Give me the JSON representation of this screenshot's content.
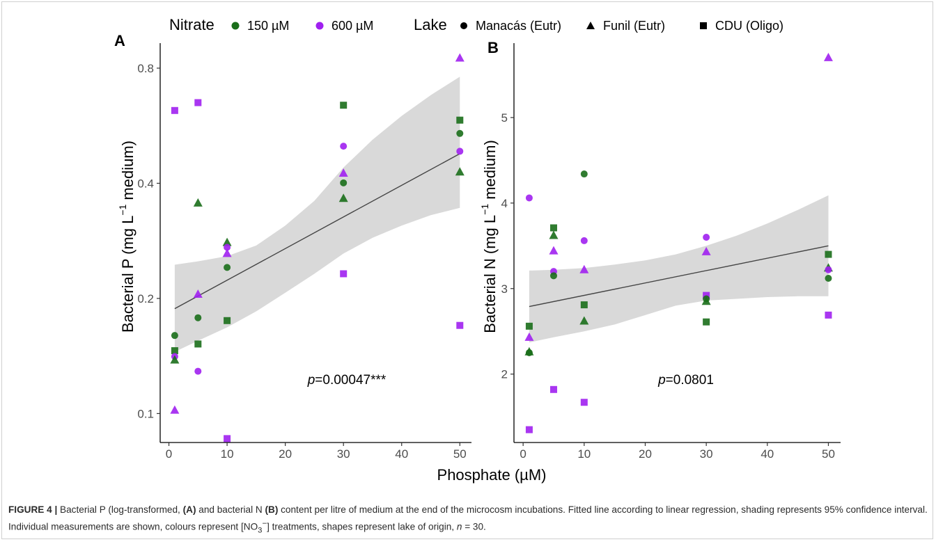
{
  "figure": {
    "legend": {
      "nitrate_title": "Nitrate",
      "nitrate_levels": [
        {
          "label": "150 µM",
          "color": "#1a6e1a"
        },
        {
          "label": "600 µM",
          "color": "#a020f0"
        }
      ],
      "lake_title": "Lake",
      "lakes": [
        {
          "label": "Manacás (Eutr)",
          "shape": "circle"
        },
        {
          "label": "Funil (Eutr)",
          "shape": "triangle"
        },
        {
          "label": "CDU (Oligo)",
          "shape": "square"
        }
      ]
    },
    "x_axis_title": "Phosphate (µM)",
    "caption": {
      "label": "FIGURE 4 |",
      "t1": " Bacterial P (log-transformed, ",
      "a": "(A)",
      "t2": " and bacterial N ",
      "b": "(B)",
      "t3": " content per litre of medium at the end of the microcosm incubations. Fitted line according to linear regression, shading represents 95% confidence interval. Individual measurements are shown, colours represent [NO",
      "sub": "3",
      "sup": "−",
      "t4": "] treatments, shapes represent lake of origin, ",
      "n": "n",
      "t5": " = 30."
    }
  },
  "chart_data": [
    {
      "type": "scatter",
      "panel": "A",
      "ylabel_pre": "Bacterial P (mg L",
      "ylabel_sup": "−1",
      "ylabel_post": " medium)",
      "y_scale": "log",
      "xlim": [
        -1.5,
        52
      ],
      "ylim": [
        0.084,
        0.93
      ],
      "x_ticks": [
        0,
        10,
        20,
        30,
        40,
        50
      ],
      "y_ticks": [
        0.1,
        0.2,
        0.4,
        0.8
      ],
      "y_tick_labels": [
        "0.1",
        "0.2",
        "0.4",
        "0.8"
      ],
      "fit": {
        "x": [
          1,
          50
        ],
        "y": [
          0.188,
          0.478
        ]
      },
      "ci_band": {
        "x": [
          1,
          5,
          10,
          15,
          20,
          25,
          30,
          35,
          40,
          45,
          50
        ],
        "upper": [
          0.245,
          0.25,
          0.258,
          0.275,
          0.31,
          0.36,
          0.44,
          0.52,
          0.6,
          0.68,
          0.76
        ],
        "lower": [
          0.145,
          0.155,
          0.168,
          0.185,
          0.207,
          0.232,
          0.262,
          0.288,
          0.31,
          0.33,
          0.345
        ]
      },
      "annotation": {
        "italic": "p",
        "text": "=0.00047***",
        "x": 30,
        "y": 0.125
      },
      "points": [
        {
          "x": 1,
          "y": 0.62,
          "nitrate": "600 µM",
          "lake": "CDU (Oligo)"
        },
        {
          "x": 1,
          "y": 0.16,
          "nitrate": "150 µM",
          "lake": "Manacás (Eutr)"
        },
        {
          "x": 1,
          "y": 0.146,
          "nitrate": "150 µM",
          "lake": "CDU (Oligo)"
        },
        {
          "x": 1,
          "y": 0.141,
          "nitrate": "600 µM",
          "lake": "Manacás (Eutr)"
        },
        {
          "x": 1,
          "y": 0.138,
          "nitrate": "150 µM",
          "lake": "Funil (Eutr)"
        },
        {
          "x": 1,
          "y": 0.102,
          "nitrate": "600 µM",
          "lake": "Funil (Eutr)"
        },
        {
          "x": 5,
          "y": 0.65,
          "nitrate": "600 µM",
          "lake": "CDU (Oligo)"
        },
        {
          "x": 5,
          "y": 0.355,
          "nitrate": "150 µM",
          "lake": "Funil (Eutr)"
        },
        {
          "x": 5,
          "y": 0.205,
          "nitrate": "600 µM",
          "lake": "Funil (Eutr)"
        },
        {
          "x": 5,
          "y": 0.178,
          "nitrate": "150 µM",
          "lake": "Manacás (Eutr)"
        },
        {
          "x": 5,
          "y": 0.152,
          "nitrate": "150 µM",
          "lake": "CDU (Oligo)"
        },
        {
          "x": 5,
          "y": 0.129,
          "nitrate": "600 µM",
          "lake": "Manacás (Eutr)"
        },
        {
          "x": 10,
          "y": 0.28,
          "nitrate": "150 µM",
          "lake": "Funil (Eutr)"
        },
        {
          "x": 10,
          "y": 0.272,
          "nitrate": "600 µM",
          "lake": "Manacás (Eutr)"
        },
        {
          "x": 10,
          "y": 0.262,
          "nitrate": "600 µM",
          "lake": "Funil (Eutr)"
        },
        {
          "x": 10,
          "y": 0.241,
          "nitrate": "150 µM",
          "lake": "Manacás (Eutr)"
        },
        {
          "x": 10,
          "y": 0.175,
          "nitrate": "150 µM",
          "lake": "CDU (Oligo)"
        },
        {
          "x": 10,
          "y": 0.086,
          "nitrate": "600 µM",
          "lake": "CDU (Oligo)"
        },
        {
          "x": 30,
          "y": 0.64,
          "nitrate": "150 µM",
          "lake": "CDU (Oligo)"
        },
        {
          "x": 30,
          "y": 0.5,
          "nitrate": "600 µM",
          "lake": "Manacás (Eutr)"
        },
        {
          "x": 30,
          "y": 0.425,
          "nitrate": "600 µM",
          "lake": "Funil (Eutr)"
        },
        {
          "x": 30,
          "y": 0.401,
          "nitrate": "150 µM",
          "lake": "Manacás (Eutr)"
        },
        {
          "x": 30,
          "y": 0.365,
          "nitrate": "150 µM",
          "lake": "Funil (Eutr)"
        },
        {
          "x": 30,
          "y": 0.232,
          "nitrate": "600 µM",
          "lake": "CDU (Oligo)"
        },
        {
          "x": 50,
          "y": 0.85,
          "nitrate": "600 µM",
          "lake": "Funil (Eutr)"
        },
        {
          "x": 50,
          "y": 0.585,
          "nitrate": "150 µM",
          "lake": "CDU (Oligo)"
        },
        {
          "x": 50,
          "y": 0.54,
          "nitrate": "150 µM",
          "lake": "Manacás (Eutr)"
        },
        {
          "x": 50,
          "y": 0.485,
          "nitrate": "600 µM",
          "lake": "Manacás (Eutr)"
        },
        {
          "x": 50,
          "y": 0.428,
          "nitrate": "150 µM",
          "lake": "Funil (Eutr)"
        },
        {
          "x": 50,
          "y": 0.17,
          "nitrate": "600 µM",
          "lake": "CDU (Oligo)"
        }
      ]
    },
    {
      "type": "scatter",
      "panel": "B",
      "ylabel_pre": "Bacterial N (mg L",
      "ylabel_sup": "−1",
      "ylabel_post": " medium)",
      "y_scale": "linear",
      "xlim": [
        -1.5,
        52
      ],
      "ylim": [
        1.2,
        5.87
      ],
      "x_ticks": [
        0,
        10,
        20,
        30,
        40,
        50
      ],
      "y_ticks": [
        2,
        3,
        4,
        5
      ],
      "y_tick_labels": [
        "2",
        "3",
        "4",
        "5"
      ],
      "fit": {
        "x": [
          1,
          50
        ],
        "y": [
          2.79,
          3.5
        ]
      },
      "ci_band": {
        "x": [
          1,
          5,
          10,
          15,
          20,
          25,
          30,
          35,
          40,
          45,
          50
        ],
        "upper": [
          3.21,
          3.22,
          3.24,
          3.28,
          3.33,
          3.4,
          3.5,
          3.62,
          3.76,
          3.92,
          4.09
        ],
        "lower": [
          2.37,
          2.43,
          2.5,
          2.58,
          2.69,
          2.8,
          2.86,
          2.88,
          2.9,
          2.91,
          2.91
        ]
      },
      "annotation": {
        "italic": "p",
        "text": "=0.0801",
        "x": 30,
        "y": 1.95
      },
      "points": [
        {
          "x": 1,
          "y": 4.06,
          "nitrate": "600 µM",
          "lake": "Manacás (Eutr)"
        },
        {
          "x": 1,
          "y": 2.56,
          "nitrate": "150 µM",
          "lake": "CDU (Oligo)"
        },
        {
          "x": 1,
          "y": 2.43,
          "nitrate": "600 µM",
          "lake": "Funil (Eutr)"
        },
        {
          "x": 1,
          "y": 2.26,
          "nitrate": "150 µM",
          "lake": "Funil (Eutr)"
        },
        {
          "x": 1,
          "y": 2.25,
          "nitrate": "150 µM",
          "lake": "Manacás (Eutr)"
        },
        {
          "x": 1,
          "y": 1.35,
          "nitrate": "600 µM",
          "lake": "CDU (Oligo)"
        },
        {
          "x": 5,
          "y": 3.71,
          "nitrate": "150 µM",
          "lake": "CDU (Oligo)"
        },
        {
          "x": 5,
          "y": 3.62,
          "nitrate": "150 µM",
          "lake": "Funil (Eutr)"
        },
        {
          "x": 5,
          "y": 3.44,
          "nitrate": "600 µM",
          "lake": "Funil (Eutr)"
        },
        {
          "x": 5,
          "y": 3.2,
          "nitrate": "600 µM",
          "lake": "Manacás (Eutr)"
        },
        {
          "x": 5,
          "y": 3.15,
          "nitrate": "150 µM",
          "lake": "Manacás (Eutr)"
        },
        {
          "x": 5,
          "y": 1.82,
          "nitrate": "600 µM",
          "lake": "CDU (Oligo)"
        },
        {
          "x": 10,
          "y": 4.34,
          "nitrate": "150 µM",
          "lake": "Manacás (Eutr)"
        },
        {
          "x": 10,
          "y": 3.56,
          "nitrate": "600 µM",
          "lake": "Manacás (Eutr)"
        },
        {
          "x": 10,
          "y": 3.22,
          "nitrate": "600 µM",
          "lake": "Funil (Eutr)"
        },
        {
          "x": 10,
          "y": 2.81,
          "nitrate": "150 µM",
          "lake": "CDU (Oligo)"
        },
        {
          "x": 10,
          "y": 2.62,
          "nitrate": "150 µM",
          "lake": "Funil (Eutr)"
        },
        {
          "x": 10,
          "y": 1.67,
          "nitrate": "600 µM",
          "lake": "CDU (Oligo)"
        },
        {
          "x": 30,
          "y": 3.6,
          "nitrate": "600 µM",
          "lake": "Manacás (Eutr)"
        },
        {
          "x": 30,
          "y": 3.43,
          "nitrate": "600 µM",
          "lake": "Funil (Eutr)"
        },
        {
          "x": 30,
          "y": 2.92,
          "nitrate": "600 µM",
          "lake": "CDU (Oligo)"
        },
        {
          "x": 30,
          "y": 2.85,
          "nitrate": "150 µM",
          "lake": "Funil (Eutr)"
        },
        {
          "x": 30,
          "y": 2.88,
          "nitrate": "150 µM",
          "lake": "Manacás (Eutr)"
        },
        {
          "x": 30,
          "y": 2.61,
          "nitrate": "150 µM",
          "lake": "CDU (Oligo)"
        },
        {
          "x": 50,
          "y": 5.7,
          "nitrate": "600 µM",
          "lake": "Funil (Eutr)"
        },
        {
          "x": 50,
          "y": 3.4,
          "nitrate": "150 µM",
          "lake": "CDU (Oligo)"
        },
        {
          "x": 50,
          "y": 3.24,
          "nitrate": "150 µM",
          "lake": "Funil (Eutr)"
        },
        {
          "x": 50,
          "y": 3.22,
          "nitrate": "600 µM",
          "lake": "Manacás (Eutr)"
        },
        {
          "x": 50,
          "y": 3.12,
          "nitrate": "150 µM",
          "lake": "Manacás (Eutr)"
        },
        {
          "x": 50,
          "y": 2.69,
          "nitrate": "600 µM",
          "lake": "CDU (Oligo)"
        }
      ]
    }
  ]
}
